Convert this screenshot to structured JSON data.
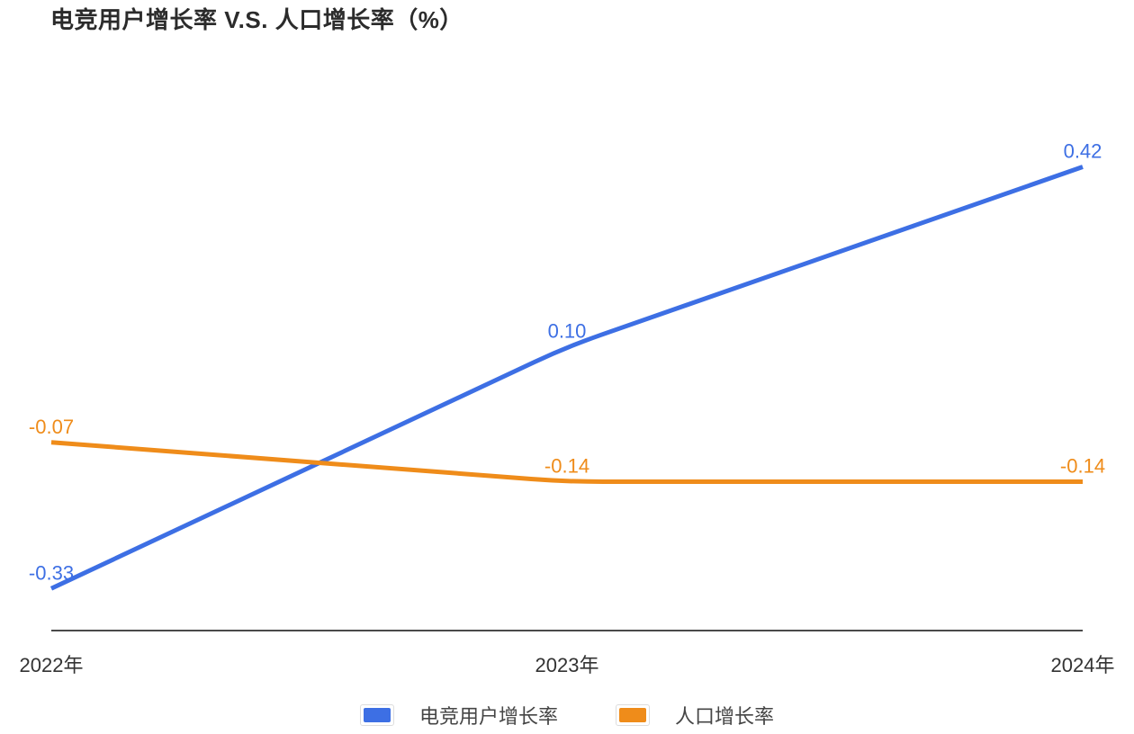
{
  "title": "电竞用户增长率 V.S. 人口增长率（%）",
  "chart_data": {
    "type": "line",
    "title": "电竞用户增长率 V.S. 人口增长率（%）",
    "categories": [
      "2022年",
      "2023年",
      "2024年"
    ],
    "series": [
      {
        "name": "电竞用户增长率",
        "color": "#3d6fe4",
        "values": [
          -0.33,
          0.1,
          0.42
        ]
      },
      {
        "name": "人口增长率",
        "color": "#ef8c1a",
        "values": [
          -0.07,
          -0.14,
          -0.14
        ]
      }
    ],
    "xlabel": "",
    "ylabel": "",
    "ylim": [
      -0.405,
      0.48
    ],
    "grid": false,
    "y_axis_visible": false,
    "legend_position": "bottom",
    "data_labels": true,
    "label_decimals": 2,
    "axis_line_color": "#4a4a4a",
    "text_color": "#333333"
  }
}
